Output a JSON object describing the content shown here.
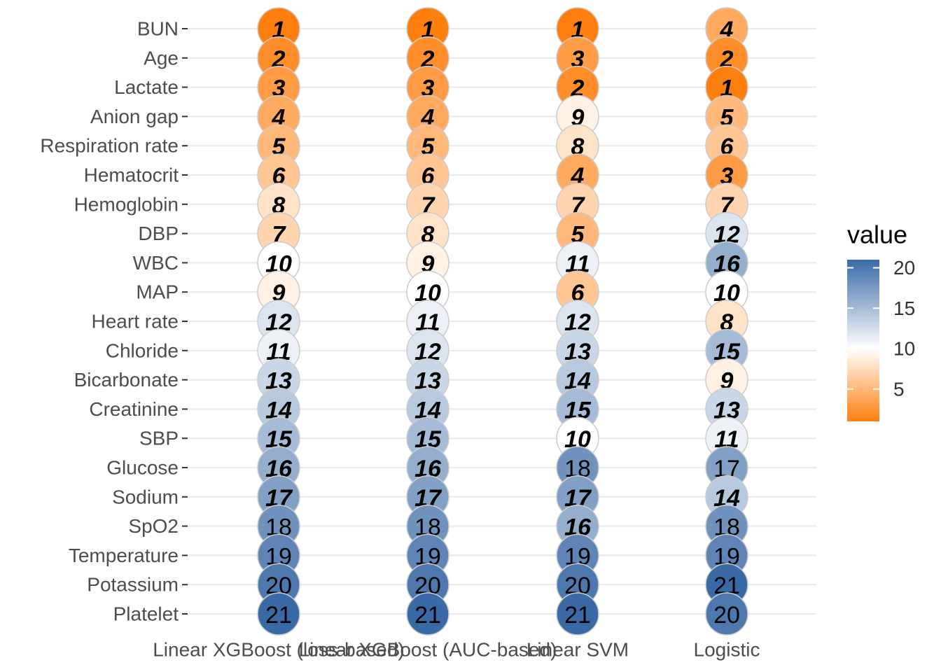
{
  "chart_data": {
    "type": "heatmap",
    "mark": "circle",
    "models": [
      "Linear XGBoost (loss-based)",
      "Linear XGBoost (AUC-based)",
      "Linear SVM",
      "Logistic"
    ],
    "features": [
      "BUN",
      "Age",
      "Lactate",
      "Anion gap",
      "Respiration rate",
      "Hematocrit",
      "Hemoglobin",
      "DBP",
      "WBC",
      "MAP",
      "Heart rate",
      "Chloride",
      "Bicarbonate",
      "Creatinine",
      "SBP",
      "Glucose",
      "Sodium",
      "SpO2",
      "Temperature",
      "Potassium",
      "Platelet"
    ],
    "values": [
      [
        1,
        1,
        1,
        4
      ],
      [
        2,
        2,
        3,
        2
      ],
      [
        3,
        3,
        2,
        1
      ],
      [
        4,
        4,
        9,
        5
      ],
      [
        5,
        5,
        8,
        6
      ],
      [
        6,
        6,
        4,
        3
      ],
      [
        8,
        7,
        7,
        7
      ],
      [
        7,
        8,
        5,
        12
      ],
      [
        10,
        9,
        11,
        16
      ],
      [
        9,
        10,
        6,
        10
      ],
      [
        12,
        11,
        12,
        8
      ],
      [
        11,
        12,
        13,
        15
      ],
      [
        13,
        13,
        14,
        9
      ],
      [
        14,
        14,
        15,
        13
      ],
      [
        15,
        15,
        10,
        11
      ],
      [
        16,
        16,
        18,
        17
      ],
      [
        17,
        17,
        17,
        14
      ],
      [
        18,
        18,
        16,
        18
      ],
      [
        19,
        19,
        19,
        19
      ],
      [
        20,
        20,
        20,
        21
      ],
      [
        21,
        21,
        21,
        20
      ]
    ],
    "emphasized": [
      [
        true,
        true,
        true,
        true
      ],
      [
        true,
        true,
        true,
        true
      ],
      [
        true,
        true,
        true,
        true
      ],
      [
        true,
        true,
        true,
        true
      ],
      [
        true,
        true,
        true,
        true
      ],
      [
        true,
        true,
        true,
        true
      ],
      [
        true,
        true,
        true,
        true
      ],
      [
        true,
        true,
        true,
        true
      ],
      [
        true,
        true,
        true,
        true
      ],
      [
        true,
        true,
        true,
        true
      ],
      [
        true,
        true,
        true,
        true
      ],
      [
        true,
        true,
        true,
        true
      ],
      [
        true,
        true,
        true,
        true
      ],
      [
        true,
        true,
        true,
        true
      ],
      [
        true,
        true,
        true,
        true
      ],
      [
        true,
        true,
        false,
        false
      ],
      [
        true,
        true,
        true,
        true
      ],
      [
        false,
        false,
        true,
        false
      ],
      [
        false,
        false,
        false,
        false
      ],
      [
        false,
        false,
        false,
        false
      ],
      [
        false,
        false,
        false,
        false
      ]
    ],
    "color_scale": {
      "low": "#ff7f0e",
      "mid": "#ffffff",
      "high": "#3a6aa6",
      "domain": [
        1,
        10,
        21
      ]
    },
    "legend": {
      "title": "value",
      "ticks": [
        5,
        10,
        15,
        20
      ],
      "position": "right"
    },
    "grid": true
  }
}
